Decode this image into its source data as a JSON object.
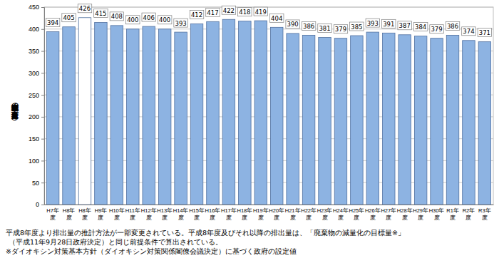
{
  "chart_data": {
    "type": "bar",
    "y_label": "産業廃棄物の排出量（百万ｔ）",
    "categories": [
      "H7年度",
      "H8年度",
      "H8年度",
      "H9年度",
      "H10年度",
      "H11年度",
      "H12年度",
      "H13年度",
      "H14年度",
      "H15年度",
      "H16年度",
      "H17年度",
      "H18年度",
      "H19年度",
      "H20年度",
      "H21年度",
      "H22年度",
      "H23年度",
      "H24年度",
      "H25年度",
      "H26年度",
      "H27年度",
      "H28年度",
      "H29年度",
      "H30年度",
      "R1年度",
      "R2年度",
      "R3年度"
    ],
    "values": [
      394,
      405,
      426,
      415,
      408,
      400,
      406,
      400,
      393,
      412,
      417,
      422,
      418,
      419,
      404,
      390,
      386,
      381,
      379,
      385,
      393,
      391,
      387,
      384,
      379,
      386,
      374,
      371
    ],
    "colors": [
      "#8db3e2",
      "#8db3e2",
      "#ffffff",
      "#8db3e2",
      "#8db3e2",
      "#8db3e2",
      "#8db3e2",
      "#8db3e2",
      "#8db3e2",
      "#8db3e2",
      "#8db3e2",
      "#8db3e2",
      "#8db3e2",
      "#8db3e2",
      "#8db3e2",
      "#8db3e2",
      "#8db3e2",
      "#8db3e2",
      "#8db3e2",
      "#8db3e2",
      "#8db3e2",
      "#8db3e2",
      "#8db3e2",
      "#8db3e2",
      "#8db3e2",
      "#8db3e2",
      "#8db3e2",
      "#8db3e2"
    ],
    "ylim": [
      0,
      450
    ],
    "yticks": [
      0,
      50,
      100,
      150,
      200,
      250,
      300,
      350,
      400,
      450
    ],
    "grid": true,
    "data_labels": true,
    "annotations": [
      "平成8年度より排出量の推計方法が一部変更されている。平成8年度及びそれ以降の排出量は、「廃棄物の減量化の目標量※」",
      "（平成11年9月28日政府決定）と同じ前提条件で算出されている。",
      "※ダイオキシン対策基本方針（ダイオキシン対策関係閣僚会議決定）に基づく政府の設定値"
    ]
  }
}
